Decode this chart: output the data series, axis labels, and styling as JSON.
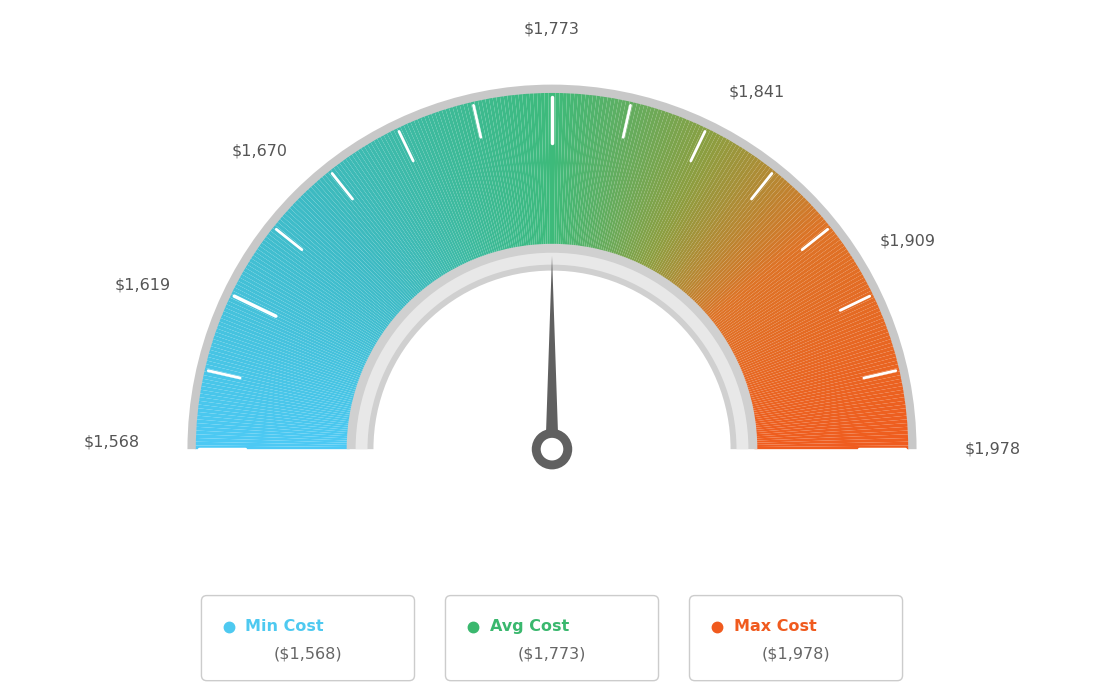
{
  "min_val": 1568,
  "avg_val": 1773,
  "max_val": 1978,
  "tick_labels": [
    {
      "value": 1568,
      "label": "$1,568"
    },
    {
      "value": 1619,
      "label": "$1,619"
    },
    {
      "value": 1670,
      "label": "$1,670"
    },
    {
      "value": 1773,
      "label": "$1,773"
    },
    {
      "value": 1841,
      "label": "$1,841"
    },
    {
      "value": 1909,
      "label": "$1,909"
    },
    {
      "value": 1978,
      "label": "$1,978"
    }
  ],
  "legend": [
    {
      "label": "Min Cost",
      "value": "($1,568)",
      "color": "#4ec9f0"
    },
    {
      "label": "Avg Cost",
      "value": "($1,773)",
      "color": "#3ab86e"
    },
    {
      "label": "Max Cost",
      "value": "($1,978)",
      "color": "#f05a1e"
    }
  ],
  "background_color": "#ffffff",
  "needle_color": "#606060",
  "outer_border_color": "#cccccc",
  "inner_bezel_color_outer": "#d5d5d5",
  "inner_bezel_color_inner": "#ebebeb"
}
